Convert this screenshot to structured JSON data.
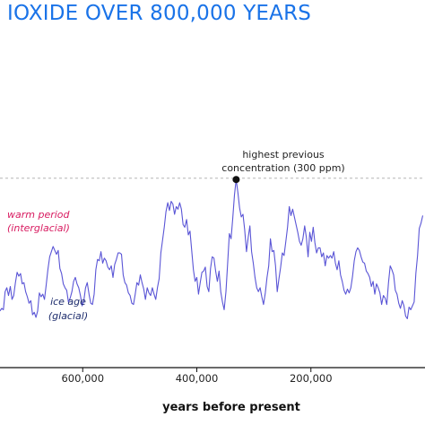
{
  "chart_data": {
    "type": "line",
    "title": "IOXIDE OVER 800,000 YEARS",
    "xlabel": "years before present",
    "ylabel": "",
    "x_reversed": true,
    "x_ticks": [
      {
        "value": 600000,
        "label": "600,000"
      },
      {
        "value": 400000,
        "label": "400,000"
      },
      {
        "value": 200000,
        "label": "200,000"
      }
    ],
    "xlim": [
      745000,
      0
    ],
    "ylim": [
      160,
      320
    ],
    "grid": false,
    "reference_line": {
      "value": 300,
      "style": "dashed"
    },
    "series": [
      {
        "name": "",
        "color": "#5a55d6",
        "points": [
          [
            745000,
            197
          ],
          [
            742000,
            199
          ],
          [
            739000,
            198
          ],
          [
            736000,
            212
          ],
          [
            733000,
            215
          ],
          [
            730000,
            209
          ],
          [
            727000,
            216
          ],
          [
            724000,
            206
          ],
          [
            721000,
            209
          ],
          [
            718000,
            219
          ],
          [
            715000,
            227
          ],
          [
            712000,
            224
          ],
          [
            709000,
            226
          ],
          [
            706000,
            218
          ],
          [
            703000,
            219
          ],
          [
            700000,
            212
          ],
          [
            697000,
            208
          ],
          [
            694000,
            203
          ],
          [
            691000,
            205
          ],
          [
            688000,
            194
          ],
          [
            685000,
            196
          ],
          [
            682000,
            192
          ],
          [
            679000,
            197
          ],
          [
            676000,
            211
          ],
          [
            673000,
            208
          ],
          [
            670000,
            210
          ],
          [
            667000,
            206
          ],
          [
            664000,
            217
          ],
          [
            661000,
            229
          ],
          [
            658000,
            239
          ],
          [
            655000,
            243
          ],
          [
            652000,
            247
          ],
          [
            649000,
            244
          ],
          [
            646000,
            241
          ],
          [
            643000,
            244
          ],
          [
            640000,
            230
          ],
          [
            637000,
            226
          ],
          [
            634000,
            218
          ],
          [
            631000,
            215
          ],
          [
            628000,
            213
          ],
          [
            625000,
            204
          ],
          [
            622000,
            207
          ],
          [
            619000,
            212
          ],
          [
            616000,
            220
          ],
          [
            613000,
            223
          ],
          [
            610000,
            218
          ],
          [
            607000,
            215
          ],
          [
            604000,
            209
          ],
          [
            601000,
            201
          ],
          [
            598000,
            205
          ],
          [
            595000,
            215
          ],
          [
            592000,
            219
          ],
          [
            589000,
            210
          ],
          [
            586000,
            203
          ],
          [
            583000,
            202
          ],
          [
            580000,
            210
          ],
          [
            577000,
            229
          ],
          [
            574000,
            237
          ],
          [
            571000,
            236
          ],
          [
            568000,
            243
          ],
          [
            565000,
            234
          ],
          [
            562000,
            238
          ],
          [
            559000,
            236
          ],
          [
            556000,
            231
          ],
          [
            553000,
            229
          ],
          [
            550000,
            232
          ],
          [
            547000,
            223
          ],
          [
            544000,
            233
          ],
          [
            541000,
            237
          ],
          [
            538000,
            242
          ],
          [
            535000,
            242
          ],
          [
            532000,
            241
          ],
          [
            529000,
            225
          ],
          [
            526000,
            219
          ],
          [
            523000,
            217
          ],
          [
            520000,
            211
          ],
          [
            517000,
            209
          ],
          [
            514000,
            203
          ],
          [
            511000,
            202
          ],
          [
            508000,
            210
          ],
          [
            505000,
            219
          ],
          [
            502000,
            217
          ],
          [
            499000,
            225
          ],
          [
            496000,
            219
          ],
          [
            493000,
            214
          ],
          [
            490000,
            206
          ],
          [
            487000,
            215
          ],
          [
            484000,
            211
          ],
          [
            481000,
            209
          ],
          [
            478000,
            215
          ],
          [
            475000,
            210
          ],
          [
            472000,
            206
          ],
          [
            469000,
            215
          ],
          [
            466000,
            222
          ],
          [
            463000,
            242
          ],
          [
            460000,
            252
          ],
          [
            457000,
            262
          ],
          [
            454000,
            274
          ],
          [
            451000,
            281
          ],
          [
            448000,
            275
          ],
          [
            445000,
            282
          ],
          [
            442000,
            280
          ],
          [
            439000,
            272
          ],
          [
            436000,
            278
          ],
          [
            433000,
            276
          ],
          [
            430000,
            281
          ],
          [
            427000,
            276
          ],
          [
            424000,
            264
          ],
          [
            421000,
            262
          ],
          [
            418000,
            268
          ],
          [
            415000,
            256
          ],
          [
            412000,
            259
          ],
          [
            409000,
            244
          ],
          [
            406000,
            229
          ],
          [
            403000,
            220
          ],
          [
            400000,
            223
          ],
          [
            397000,
            210
          ],
          [
            394000,
            219
          ],
          [
            391000,
            227
          ],
          [
            388000,
            228
          ],
          [
            385000,
            231
          ],
          [
            382000,
            216
          ],
          [
            379000,
            212
          ],
          [
            376000,
            230
          ],
          [
            373000,
            239
          ],
          [
            370000,
            238
          ],
          [
            367000,
            228
          ],
          [
            364000,
            220
          ],
          [
            361000,
            228
          ],
          [
            358000,
            212
          ],
          [
            355000,
            204
          ],
          [
            352000,
            198
          ],
          [
            349000,
            212
          ],
          [
            346000,
            234
          ],
          [
            343000,
            257
          ],
          [
            340000,
            253
          ],
          [
            337000,
            269
          ],
          [
            334000,
            287
          ],
          [
            331000,
            299
          ],
          [
            328000,
            289
          ],
          [
            325000,
            277
          ],
          [
            322000,
            270
          ],
          [
            319000,
            272
          ],
          [
            316000,
            260
          ],
          [
            313000,
            243
          ],
          [
            310000,
            254
          ],
          [
            307000,
            263
          ],
          [
            304000,
            243
          ],
          [
            301000,
            234
          ],
          [
            298000,
            223
          ],
          [
            295000,
            215
          ],
          [
            292000,
            212
          ],
          [
            289000,
            215
          ],
          [
            286000,
            208
          ],
          [
            283000,
            202
          ],
          [
            280000,
            211
          ],
          [
            277000,
            223
          ],
          [
            274000,
            232
          ],
          [
            271000,
            253
          ],
          [
            268000,
            243
          ],
          [
            265000,
            244
          ],
          [
            262000,
            232
          ],
          [
            259000,
            212
          ],
          [
            256000,
            222
          ],
          [
            253000,
            231
          ],
          [
            250000,
            242
          ],
          [
            247000,
            240
          ],
          [
            244000,
            251
          ],
          [
            241000,
            262
          ],
          [
            238000,
            278
          ],
          [
            235000,
            271
          ],
          [
            232000,
            276
          ],
          [
            229000,
            270
          ],
          [
            226000,
            264
          ],
          [
            223000,
            258
          ],
          [
            220000,
            251
          ],
          [
            217000,
            248
          ],
          [
            214000,
            253
          ],
          [
            211000,
            263
          ],
          [
            208000,
            254
          ],
          [
            205000,
            239
          ],
          [
            202000,
            258
          ],
          [
            199000,
            251
          ],
          [
            196000,
            262
          ],
          [
            193000,
            250
          ],
          [
            190000,
            242
          ],
          [
            187000,
            246
          ],
          [
            184000,
            246
          ],
          [
            181000,
            239
          ],
          [
            178000,
            242
          ],
          [
            175000,
            232
          ],
          [
            172000,
            240
          ],
          [
            169000,
            238
          ],
          [
            166000,
            240
          ],
          [
            163000,
            238
          ],
          [
            160000,
            243
          ],
          [
            157000,
            234
          ],
          [
            154000,
            229
          ],
          [
            151000,
            236
          ],
          [
            148000,
            225
          ],
          [
            145000,
            220
          ],
          [
            142000,
            213
          ],
          [
            139000,
            210
          ],
          [
            136000,
            214
          ],
          [
            133000,
            211
          ],
          [
            130000,
            215
          ],
          [
            127000,
            224
          ],
          [
            124000,
            236
          ],
          [
            121000,
            243
          ],
          [
            118000,
            246
          ],
          [
            115000,
            244
          ],
          [
            112000,
            239
          ],
          [
            109000,
            235
          ],
          [
            106000,
            234
          ],
          [
            103000,
            228
          ],
          [
            100000,
            226
          ],
          [
            97000,
            223
          ],
          [
            94000,
            216
          ],
          [
            91000,
            220
          ],
          [
            88000,
            210
          ],
          [
            85000,
            218
          ],
          [
            82000,
            215
          ],
          [
            79000,
            211
          ],
          [
            76000,
            202
          ],
          [
            73000,
            209
          ],
          [
            70000,
            207
          ],
          [
            67000,
            202
          ],
          [
            64000,
            219
          ],
          [
            61000,
            232
          ],
          [
            58000,
            229
          ],
          [
            55000,
            225
          ],
          [
            52000,
            213
          ],
          [
            49000,
            210
          ],
          [
            46000,
            203
          ],
          [
            43000,
            199
          ],
          [
            40000,
            205
          ],
          [
            37000,
            201
          ],
          [
            34000,
            193
          ],
          [
            31000,
            191
          ],
          [
            28000,
            200
          ],
          [
            25000,
            198
          ],
          [
            22000,
            201
          ],
          [
            19000,
            204
          ],
          [
            16000,
            226
          ],
          [
            13000,
            240
          ],
          [
            10000,
            261
          ],
          [
            7000,
            265
          ],
          [
            4000,
            271
          ]
        ]
      }
    ],
    "annotations": [
      {
        "id": "peak",
        "line1": "highest previous",
        "line2": "concentration (300 ppm)",
        "x": 331000,
        "y": 299
      },
      {
        "id": "warm",
        "line1": "warm period",
        "line2": "(interglacial)",
        "color": "#d81b60"
      },
      {
        "id": "ice",
        "line1": "ice age",
        "line2": "(glacial)",
        "color": "#1b2a6b"
      }
    ]
  },
  "colors": {
    "title": "#1a73e8",
    "line": "#5a55d6",
    "axis": "#111111",
    "reference": "#b5b5b5"
  }
}
